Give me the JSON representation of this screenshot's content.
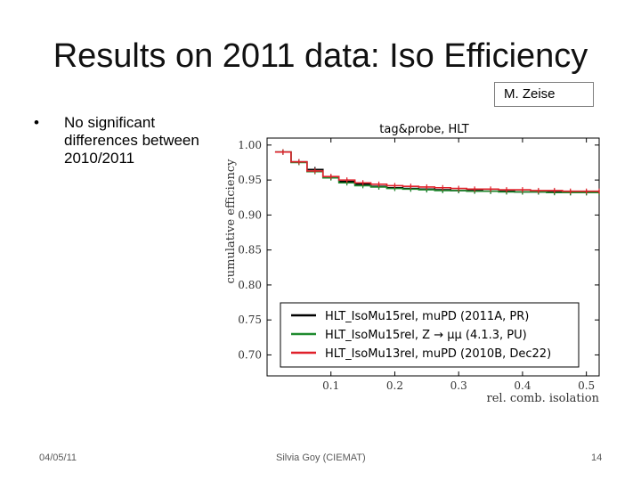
{
  "slide": {
    "title": "Results on 2011 data: Iso Efficiency",
    "author_box": "M. Zeise",
    "bullets": [
      "No significant differences between 2010/2011"
    ]
  },
  "footer": {
    "date": "04/05/11",
    "author": "Silvia Goy (CIEMAT)",
    "page": "14"
  },
  "chart_data": {
    "type": "line",
    "title": "tag&probe, HLT",
    "xlabel": "rel. comb. isolation",
    "ylabel": "cumulative efficiency",
    "xlim": [
      0.0,
      0.52
    ],
    "ylim": [
      0.67,
      1.01
    ],
    "xticks": [
      0.1,
      0.2,
      0.3,
      0.4,
      0.5
    ],
    "xtick_labels": [
      "0.1",
      "0.2",
      "0.3",
      "0.4",
      "0.5"
    ],
    "yticks": [
      0.7,
      0.75,
      0.8,
      0.85,
      0.9,
      0.95,
      1.0
    ],
    "ytick_labels": [
      "0.70",
      "0.75",
      "0.80",
      "0.85",
      "0.90",
      "0.95",
      "1.00"
    ],
    "legend_position": "lower-right",
    "grid": false,
    "x": [
      0.025,
      0.05,
      0.075,
      0.1,
      0.125,
      0.15,
      0.175,
      0.2,
      0.225,
      0.25,
      0.275,
      0.3,
      0.325,
      0.35,
      0.375,
      0.4,
      0.425,
      0.45,
      0.475,
      0.5,
      0.52
    ],
    "series": [
      {
        "name": "HLT_IsoMu15rel, muPD (2011A, PR)",
        "color": "#000000",
        "values": [
          0.99,
          0.976,
          0.965,
          0.954,
          0.948,
          0.944,
          0.941,
          0.939,
          0.938,
          0.937,
          0.936,
          0.935,
          0.935,
          0.934,
          0.934,
          0.933,
          0.933,
          0.933,
          0.932,
          0.932,
          0.932
        ]
      },
      {
        "name": "HLT_IsoMu15rel, Z → μμ (4.1.3, PU)",
        "color": "#1f8a2e",
        "values": [
          0.99,
          0.975,
          0.962,
          0.953,
          0.946,
          0.942,
          0.94,
          0.938,
          0.937,
          0.936,
          0.935,
          0.935,
          0.934,
          0.934,
          0.933,
          0.933,
          0.933,
          0.932,
          0.932,
          0.932,
          0.932
        ]
      },
      {
        "name": "HLT_IsoMu13rel, muPD (2010B, Dec22)",
        "color": "#e0202a",
        "values": [
          0.99,
          0.976,
          0.963,
          0.955,
          0.95,
          0.946,
          0.944,
          0.942,
          0.941,
          0.94,
          0.939,
          0.938,
          0.937,
          0.937,
          0.936,
          0.936,
          0.935,
          0.935,
          0.934,
          0.934,
          0.934
        ]
      }
    ]
  }
}
